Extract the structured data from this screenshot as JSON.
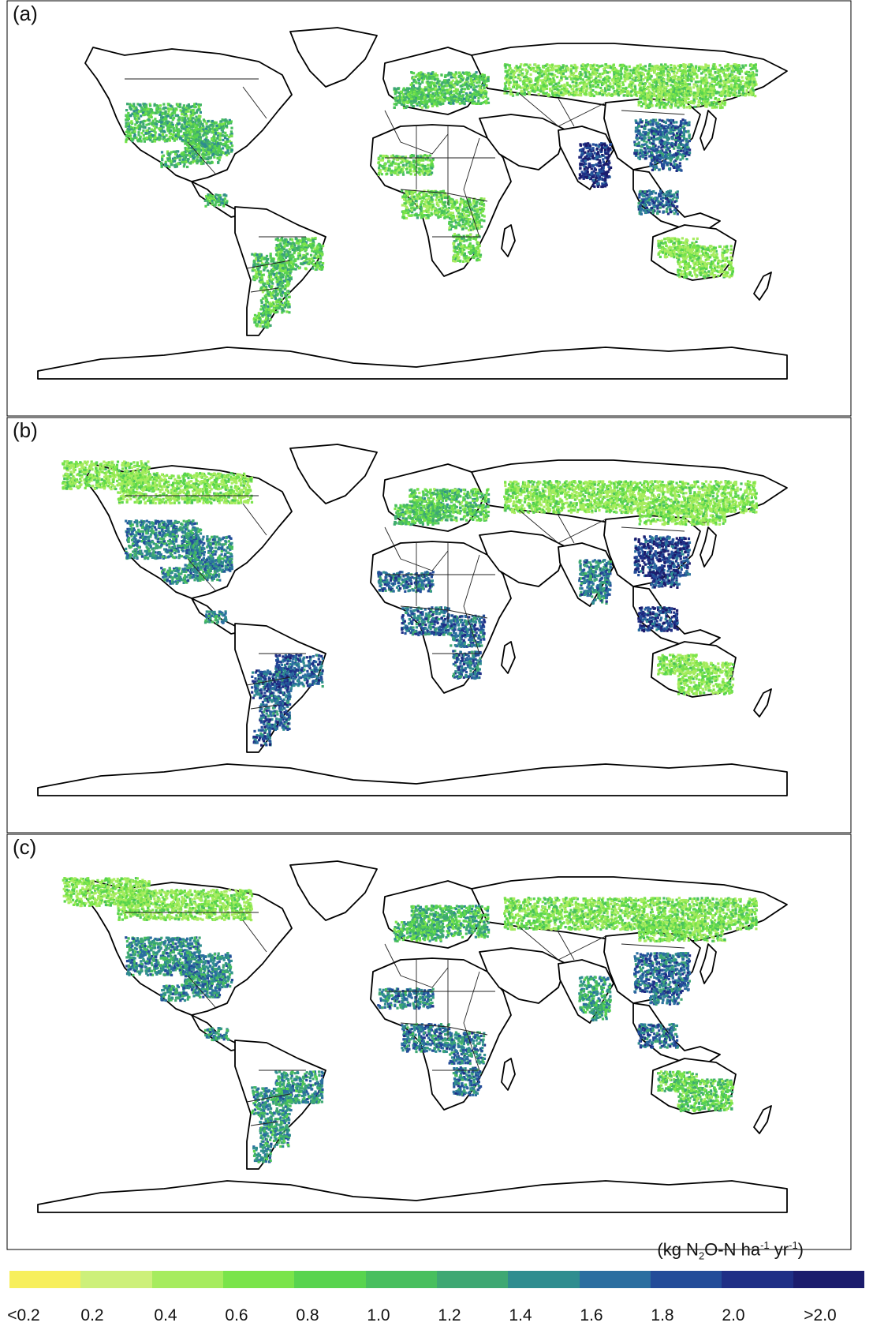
{
  "panels": [
    {
      "label": "(a)",
      "intensity": {
        "north_america": 0.9,
        "boreal": 0.0,
        "south_america": 0.8,
        "africa": 0.6,
        "europe": 0.8,
        "russia": 0.5,
        "south_asia": 1.9,
        "east_asia": 1.5,
        "australia": 0.4
      }
    },
    {
      "label": "(b)",
      "intensity": {
        "north_america": 1.3,
        "boreal": 0.4,
        "south_america": 1.6,
        "africa": 1.5,
        "europe": 0.8,
        "russia": 0.4,
        "south_asia": 1.4,
        "east_asia": 1.8,
        "australia": 0.4
      }
    },
    {
      "label": "(c)",
      "intensity": {
        "north_america": 1.3,
        "boreal": 0.4,
        "south_america": 1.2,
        "africa": 1.4,
        "europe": 0.9,
        "russia": 0.5,
        "south_asia": 1.1,
        "east_asia": 1.5,
        "australia": 0.7
      }
    }
  ],
  "legend": {
    "unit_parts": [
      "(kg N",
      "2",
      "O-N ha",
      "-1",
      " yr",
      "-1",
      ")"
    ],
    "colors": [
      "#f7ef5c",
      "#cdf07a",
      "#a6ec5e",
      "#7ae44a",
      "#58d44e",
      "#48bf5e",
      "#3ea873",
      "#2f8d8f",
      "#2b6ea0",
      "#234c99",
      "#1f2f86",
      "#1b1c6d"
    ],
    "tick_labels": [
      "<0.2",
      "0.2",
      "0.4",
      "0.6",
      "0.8",
      "1.0",
      "1.2",
      "1.4",
      "1.6",
      "1.8",
      "2.0",
      ">2.0"
    ]
  }
}
